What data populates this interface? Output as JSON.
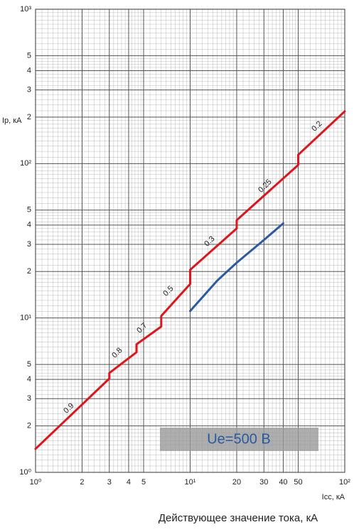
{
  "chart_data": {
    "type": "line",
    "xlabel": "Действующее значение тока, кА",
    "x_axis_label": "Icc, кА",
    "ylabel": "Ip, кА",
    "xscale": "log",
    "yscale": "log",
    "grid": true,
    "xlim": [
      1,
      100
    ],
    "ylim": [
      1,
      1000
    ],
    "xticks": [
      {
        "value": 1,
        "label": "10⁰"
      },
      2,
      3,
      4,
      5,
      {
        "value": 10,
        "label": "10¹"
      },
      20,
      30,
      40,
      50,
      {
        "value": 100,
        "label": "10²"
      }
    ],
    "yticks": [
      {
        "value": 1,
        "label": "10⁰"
      },
      2,
      3,
      4,
      5,
      {
        "value": 10,
        "label": "10¹"
      },
      {
        "value": 20,
        "label": "2"
      },
      {
        "value": 30,
        "label": "3"
      },
      {
        "value": 40,
        "label": "4"
      },
      {
        "value": 50,
        "label": "5"
      },
      {
        "value": 100,
        "label": "10²"
      },
      {
        "value": 200,
        "label": "2"
      },
      {
        "value": 300,
        "label": "3"
      },
      {
        "value": 400,
        "label": "4"
      },
      {
        "value": 500,
        "label": "5"
      },
      {
        "value": 1000,
        "label": "10³"
      }
    ],
    "series": [
      {
        "color": "#e0151b",
        "x": [
          1,
          3,
          3,
          4.5,
          4.5,
          6.5,
          6.5,
          10,
          10,
          20,
          20,
          50,
          50,
          100
        ],
        "values": [
          1.42,
          4.05,
          4.4,
          6.0,
          6.75,
          8.8,
          10.3,
          16.6,
          20.5,
          38,
          43,
          98,
          114,
          218
        ]
      },
      {
        "color": "#2a5aa0",
        "x": [
          10,
          15,
          20,
          30,
          40
        ],
        "values": [
          11.1,
          17.5,
          22.8,
          32,
          41
        ]
      }
    ],
    "annotations": [
      "0.9",
      "0.8",
      "0.7",
      "0.5",
      "0.3",
      "0.25",
      "0.2"
    ],
    "box_label": "Ue=500 В"
  }
}
